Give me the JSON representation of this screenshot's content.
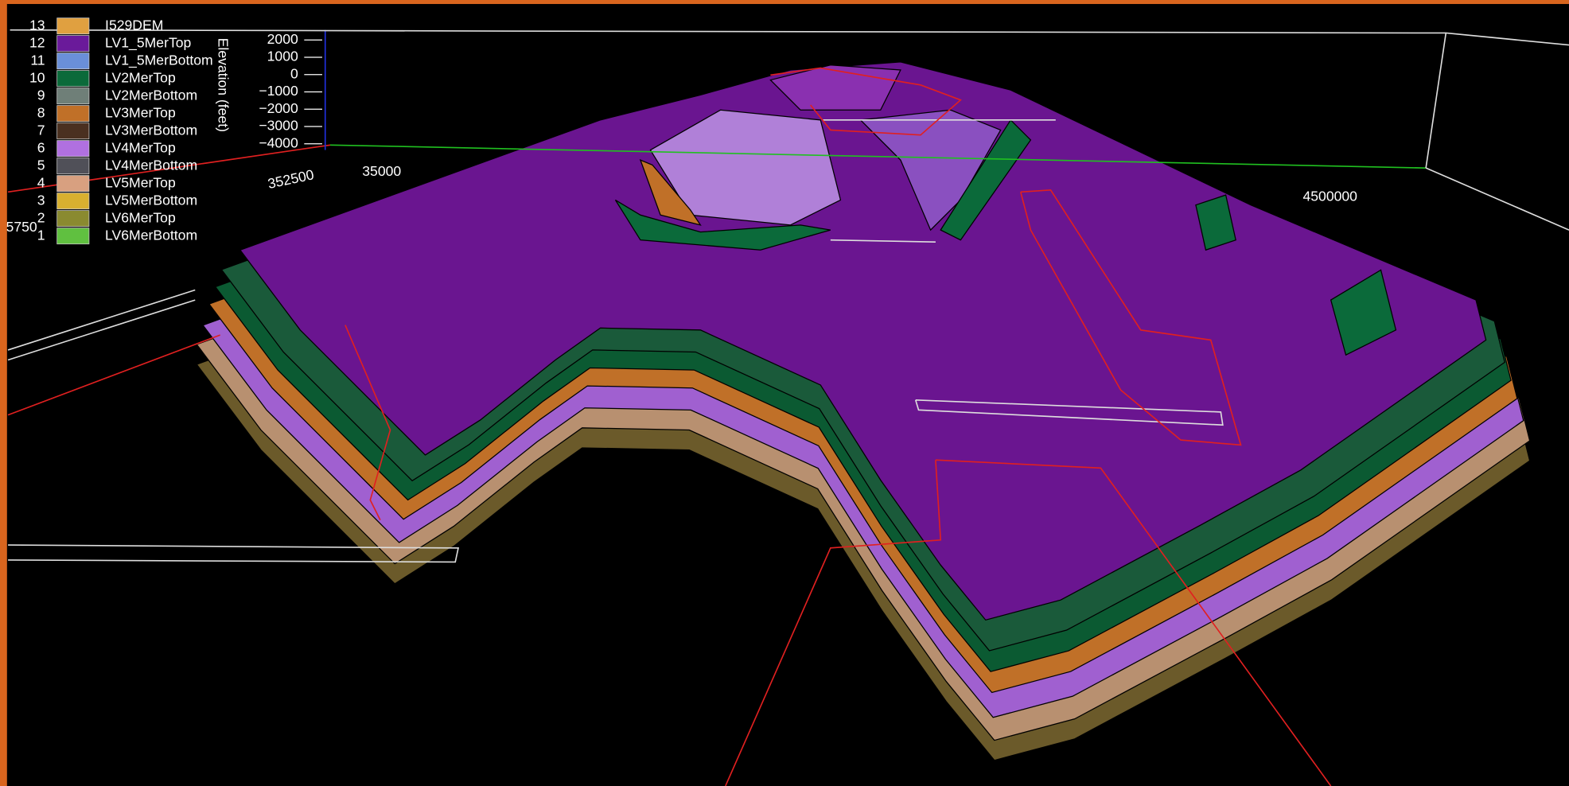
{
  "legend": {
    "items": [
      {
        "index": "13",
        "label": "I529DEM",
        "color": "#e0a040"
      },
      {
        "index": "12",
        "label": "LV1_5MerTop",
        "color": "#6a1a9a"
      },
      {
        "index": "11",
        "label": "LV1_5MerBottom",
        "color": "#6a8fd8"
      },
      {
        "index": "10",
        "label": "LV2MerTop",
        "color": "#0b6a3a"
      },
      {
        "index": "9",
        "label": "LV2MerBottom",
        "color": "#6f7f78"
      },
      {
        "index": "8",
        "label": "LV3MerTop",
        "color": "#c07028"
      },
      {
        "index": "7",
        "label": "LV3MerBottom",
        "color": "#4a3020"
      },
      {
        "index": "6",
        "label": "LV4MerTop",
        "color": "#b070e0"
      },
      {
        "index": "5",
        "label": "LV4MerBottom",
        "color": "#505058"
      },
      {
        "index": "4",
        "label": "LV5MerTop",
        "color": "#d8a080"
      },
      {
        "index": "3",
        "label": "LV5MerBottom",
        "color": "#d8b030"
      },
      {
        "index": "2",
        "label": "LV6MerTop",
        "color": "#8a8a30"
      },
      {
        "index": "1",
        "label": "LV6MerBottom",
        "color": "#60c040"
      }
    ]
  },
  "elevation_axis": {
    "label": "Elevation (feet)",
    "ticks": [
      "2000",
      "1000",
      "0",
      "−1000",
      "−2000",
      "−3000",
      "−4000"
    ]
  },
  "scene_labels": [
    "352500",
    "35000",
    "4500000",
    "5750"
  ]
}
